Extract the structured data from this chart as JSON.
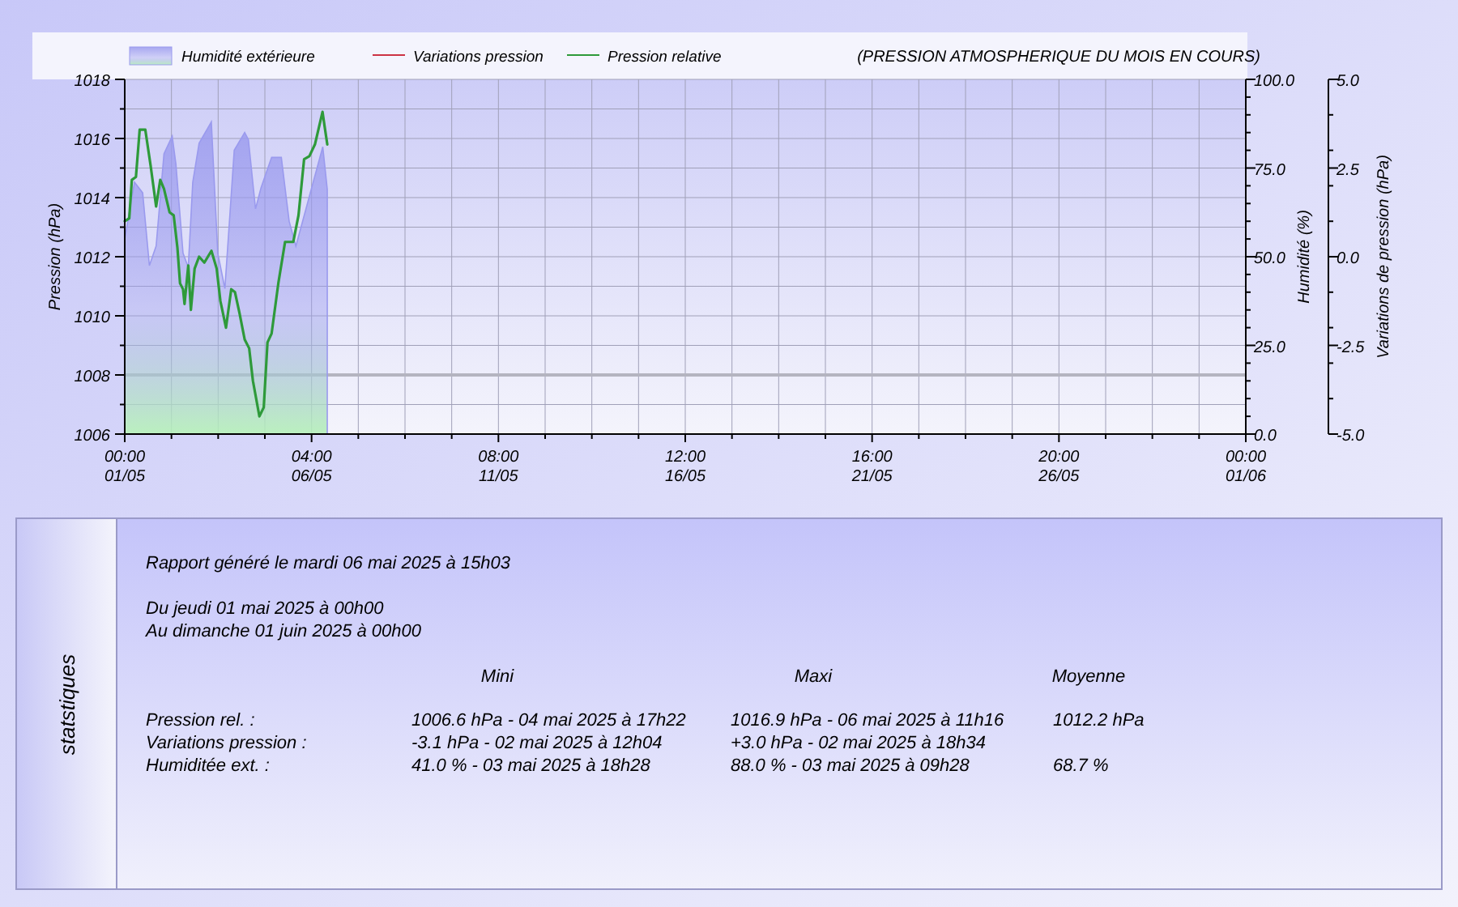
{
  "chart_data": [
    {
      "type": "line",
      "title": "(PRESSION ATMOSPHERIQUE DU MOIS EN COURS)",
      "ylabel": "Pression (hPa)",
      "y2label": "Humidité (%)",
      "y3label": "Variations de pression (hPa)",
      "legend": "top left",
      "grid": true,
      "xlim": [
        "2025-05-01T00:00",
        "2025-06-01T00:00"
      ],
      "xticks": [
        {
          "value": "2025-05-01T00:00",
          "label": "00:00\n01/05"
        },
        {
          "value": "2025-05-02T07:00",
          "label": null
        },
        {
          "value": "2025-05-03T14:00",
          "label": null
        },
        {
          "value": "2025-05-04T21:00",
          "label": null
        },
        {
          "value": "2025-05-06T04:00",
          "label": "04:00\n06/05"
        },
        {
          "value": "2025-05-07T11:00",
          "label": null
        },
        {
          "value": "2025-05-08T18:00",
          "label": null
        },
        {
          "value": "2025-05-10T01:00",
          "label": null
        },
        {
          "value": "2025-05-11T08:00",
          "label": "08:00\n11/05"
        },
        {
          "value": "2025-05-12T15:00",
          "label": null
        },
        {
          "value": "2025-05-13T22:00",
          "label": null
        },
        {
          "value": "2025-05-15T05:00",
          "label": null
        },
        {
          "value": "2025-05-16T12:00",
          "label": "12:00\n16/05"
        },
        {
          "value": "2025-05-17T19:00",
          "label": null
        },
        {
          "value": "2025-05-19T02:00",
          "label": null
        },
        {
          "value": "2025-05-20T09:00",
          "label": null
        },
        {
          "value": "2025-05-21T16:00",
          "label": "16:00\n21/05"
        },
        {
          "value": "2025-05-22T23:00",
          "label": null
        },
        {
          "value": "2025-05-24T06:00",
          "label": null
        },
        {
          "value": "2025-05-25T13:00",
          "label": null
        },
        {
          "value": "2025-05-26T20:00",
          "label": "20:00\n26/05"
        },
        {
          "value": "2025-05-28T03:00",
          "label": null
        },
        {
          "value": "2025-05-29T10:00",
          "label": null
        },
        {
          "value": "2025-05-30T17:00",
          "label": null
        },
        {
          "value": "2025-06-01T00:00",
          "label": "00:00\n01/06"
        }
      ],
      "ylim": [
        1006,
        1018
      ],
      "yticks": [
        1006,
        {
          "value": 1007,
          "label": null
        },
        1008,
        {
          "value": 1009,
          "label": null
        },
        1010,
        {
          "value": 1011,
          "label": null
        },
        1012,
        {
          "value": 1013,
          "label": null
        },
        1014,
        {
          "value": 1015,
          "label": null
        },
        1016,
        {
          "value": 1017,
          "label": null
        },
        1018
      ],
      "y2lim": [
        0,
        100
      ],
      "y2ticks": [
        {
          "value": 0,
          "label": "0.0"
        },
        {
          "value": 5,
          "label": null
        },
        {
          "value": 10,
          "label": null
        },
        {
          "value": 15,
          "label": null
        },
        {
          "value": 20,
          "label": null
        },
        {
          "value": 25,
          "label": "25.0"
        },
        {
          "value": 30,
          "label": null
        },
        {
          "value": 35,
          "label": null
        },
        {
          "value": 40,
          "label": null
        },
        {
          "value": 45,
          "label": null
        },
        {
          "value": 50,
          "label": "50.0"
        },
        {
          "value": 55,
          "label": null
        },
        {
          "value": 60,
          "label": null
        },
        {
          "value": 65,
          "label": null
        },
        {
          "value": 70,
          "label": null
        },
        {
          "value": 75,
          "label": "75.0"
        },
        {
          "value": 80,
          "label": null
        },
        {
          "value": 85,
          "label": null
        },
        {
          "value": 90,
          "label": null
        },
        {
          "value": 95,
          "label": null
        },
        {
          "value": 100,
          "label": "100.0"
        }
      ],
      "y3lim": [
        -5,
        5
      ],
      "y3ticks": [
        {
          "value": -5,
          "label": "-5.0"
        },
        {
          "value": -4,
          "label": null
        },
        {
          "value": -3,
          "label": null
        },
        {
          "value": -2.5,
          "label": "-2.5"
        },
        {
          "value": -2,
          "label": null
        },
        {
          "value": -1,
          "label": null
        },
        {
          "value": 0,
          "label": "0.0"
        },
        {
          "value": 1,
          "label": null
        },
        {
          "value": 2,
          "label": null
        },
        {
          "value": 2.5,
          "label": "2.5"
        },
        {
          "value": 3,
          "label": null
        },
        {
          "value": 4,
          "label": null
        },
        {
          "value": 5,
          "label": "5.0"
        }
      ],
      "ref_lines": [
        {
          "axis": "y",
          "value": 1008,
          "color": "#b4b4c0"
        }
      ],
      "series": [
        {
          "name": "Humidité extérieure",
          "type": "area",
          "axis": "y2",
          "color": "#9a9aee",
          "x": [
            "2025-05-01T00:00",
            "2025-05-01T06:27",
            "2025-05-01T11:54",
            "2025-05-01T16:22",
            "2025-05-01T20:50",
            "2025-05-02T02:02",
            "2025-05-02T07:30",
            "2025-05-02T09:59",
            "2025-05-02T14:41",
            "2025-05-02T18:10",
            "2025-05-02T21:08",
            "2025-05-03T01:21",
            "2025-05-03T09:28",
            "2025-05-03T13:45",
            "2025-05-03T18:28",
            "2025-05-04T00:40",
            "2025-05-04T07:36",
            "2025-05-04T10:05",
            "2025-05-04T14:48",
            "2025-05-04T18:31",
            "2025-05-05T01:28",
            "2025-05-05T07:55",
            "2025-05-05T13:07",
            "2025-05-05T17:35",
            "2025-05-06T02:31",
            "2025-05-06T11:26",
            "2025-05-06T14:25"
          ],
          "values": [
            55,
            71,
            68,
            47.5,
            53,
            79,
            84,
            76,
            51,
            47,
            71,
            82,
            88,
            51,
            41,
            80,
            85,
            83,
            63.5,
            69.5,
            78,
            78,
            60,
            53,
            67,
            81,
            69
          ]
        },
        {
          "name": "Variations pression",
          "type": "line",
          "axis": "y3",
          "color": "#cc3344"
        },
        {
          "name": "Pression relative",
          "type": "line",
          "axis": "y",
          "color": "#2e9a3a",
          "x": [
            "2025-05-01T00:00",
            "2025-05-01T02:59",
            "2025-05-01T04:43",
            "2025-05-01T07:26",
            "2025-05-01T09:55",
            "2025-05-01T13:38",
            "2025-05-01T17:07",
            "2025-05-01T20:50",
            "2025-05-01T23:34",
            "2025-05-02T02:02",
            "2025-05-02T05:46",
            "2025-05-02T08:29",
            "2025-05-02T10:58",
            "2025-05-02T12:42",
            "2025-05-02T14:41",
            "2025-05-02T15:41",
            "2025-05-02T18:10",
            "2025-05-02T19:54",
            "2025-05-02T22:23",
            "2025-05-03T01:21",
            "2025-05-03T04:49",
            "2025-05-03T09:32",
            "2025-05-03T13:00",
            "2025-05-03T15:29",
            "2025-05-03T19:12",
            "2025-05-03T22:41",
            "2025-05-04T01:10",
            "2025-05-04T04:08",
            "2025-05-04T07:36",
            "2025-05-04T10:35",
            "2025-05-04T13:04",
            "2025-05-04T17:22",
            "2025-05-04T20:15",
            "2025-05-04T22:44",
            "2025-05-05T01:28",
            "2025-05-05T05:56",
            "2025-05-05T10:24",
            "2025-05-05T15:51",
            "2025-05-05T19:19",
            "2025-05-05T23:02",
            "2025-05-06T02:31",
            "2025-05-06T06:14",
            "2025-05-06T11:16",
            "2025-05-06T12:41",
            "2025-05-06T14:25"
          ],
          "values": [
            1013.2,
            1013.3,
            1014.6,
            1014.7,
            1016.3,
            1016.3,
            1015.1,
            1013.7,
            1014.6,
            1014.3,
            1013.5,
            1013.4,
            1012.3,
            1011.1,
            1010.9,
            1010.4,
            1011.7,
            1010.2,
            1011.6,
            1012,
            1011.8,
            1012.2,
            1011.6,
            1010.5,
            1009.6,
            1010.9,
            1010.8,
            1010.1,
            1009.2,
            1008.9,
            1007.8,
            1006.6,
            1006.9,
            1009.1,
            1009.4,
            1011.1,
            1012.5,
            1012.5,
            1013.4,
            1015.3,
            1015.4,
            1015.8,
            1016.9,
            1016.4,
            1015.8
          ]
        }
      ]
    },
    {
      "type": "other",
      "title": "statstiques",
      "annotations": [
        "Rapport généré le mardi 06 mai 2025 à 15h03",
        "Du jeudi 01 mai 2025 à 00h00",
        "Au dimanche 01 juin 2025 à 00h00",
        "Mini",
        "Maxi",
        "Moyenne",
        "Pression rel. :",
        "1006.6 hPa - 04 mai 2025 à 17h22",
        "1016.9 hPa - 06 mai 2025 à 11h16",
        "1012.2 hPa",
        "Variations pression :",
        "-3.1 hPa - 02 mai 2025 à 12h04",
        "+3.0 hPa - 02 mai 2025 à 18h34",
        null,
        "Humiditée ext. :",
        "41.0 % - 03 mai 2025 à 18h28",
        "88.0 % - 03 mai 2025 à 09h28",
        "68.7 %"
      ]
    }
  ]
}
